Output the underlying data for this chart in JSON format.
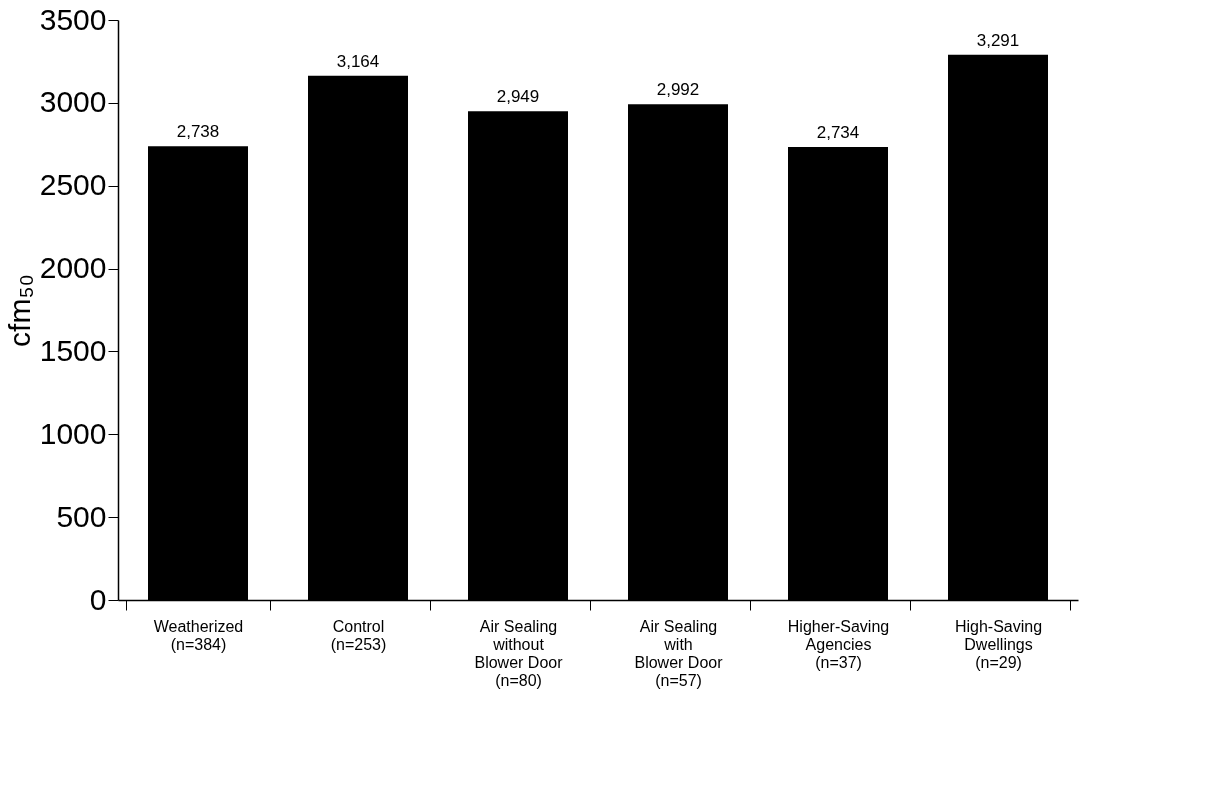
{
  "chart_data": {
    "type": "bar",
    "ylabel": "cfm₅₀",
    "categories": [
      "Weatherized\n(n=384)",
      "Control\n(n=253)",
      "Air Sealing\nwithout\nBlower Door\n(n=80)",
      "Air Sealing\nwith\nBlower Door\n(n=57)",
      "Higher-Saving\nAgencies\n(n=37)",
      "High-Saving\nDwellings\n(n=29)"
    ],
    "values": [
      2738,
      3164,
      2949,
      2992,
      2734,
      3291
    ],
    "value_labels": [
      "2,738",
      "3,164",
      "2,949",
      "2,992",
      "2,734",
      "3,291"
    ],
    "color": "#000000",
    "ylim": [
      0,
      3500
    ],
    "yticks": [
      0,
      500,
      1000,
      1500,
      2000,
      2500,
      3000,
      3500
    ],
    "grid": false
  }
}
